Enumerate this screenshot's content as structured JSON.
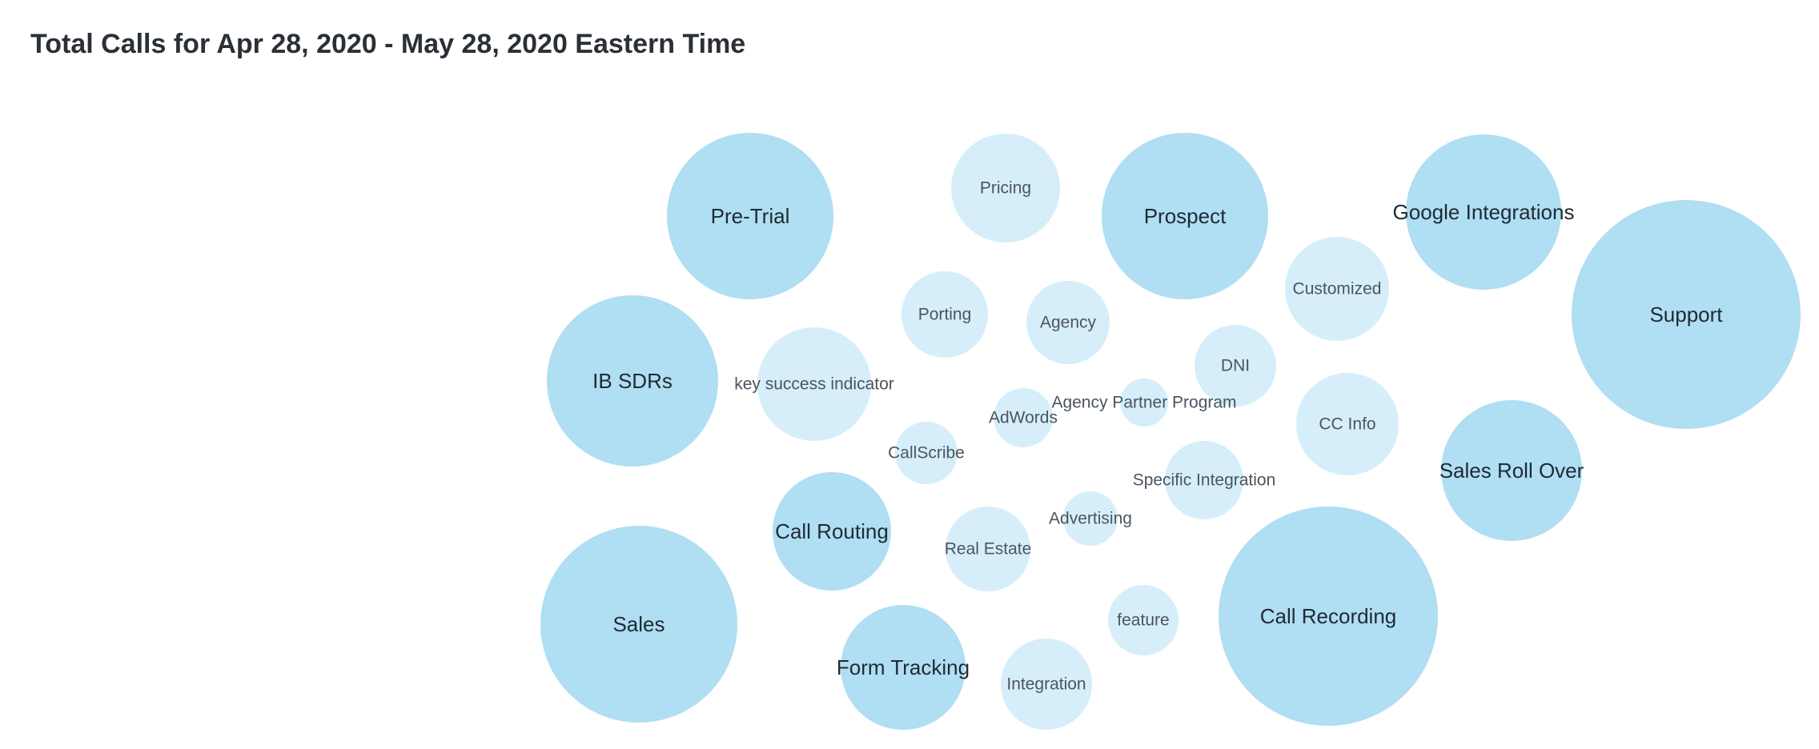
{
  "chart_data": {
    "type": "bubble",
    "title": "Total Calls for Apr 28, 2020 - May 28, 2020 Eastern Time",
    "colors": {
      "large": "#b0def3",
      "small": "#d6eef9",
      "label_large": "#1f2a33",
      "label_small": "#4a5560"
    },
    "bubbles": [
      {
        "label": "Pre-Trial",
        "tier": "large"
      },
      {
        "label": "Pricing",
        "tier": "small"
      },
      {
        "label": "Prospect",
        "tier": "large"
      },
      {
        "label": "Google Integrations",
        "tier": "large"
      },
      {
        "label": "Support",
        "tier": "large"
      },
      {
        "label": "Customized",
        "tier": "small"
      },
      {
        "label": "Porting",
        "tier": "small"
      },
      {
        "label": "Agency",
        "tier": "small"
      },
      {
        "label": "IB SDRs",
        "tier": "large"
      },
      {
        "label": "key success indicator",
        "tier": "small"
      },
      {
        "label": "DNI",
        "tier": "small"
      },
      {
        "label": "AdWords",
        "tier": "small"
      },
      {
        "label": "Agency Partner Program",
        "tier": "small"
      },
      {
        "label": "CC Info",
        "tier": "small"
      },
      {
        "label": "CallScribe",
        "tier": "small"
      },
      {
        "label": "Sales Roll Over",
        "tier": "large"
      },
      {
        "label": "Specific Integration",
        "tier": "small"
      },
      {
        "label": "Call Routing",
        "tier": "large"
      },
      {
        "label": "Advertising",
        "tier": "small"
      },
      {
        "label": "Real Estate",
        "tier": "small"
      },
      {
        "label": "Sales",
        "tier": "large"
      },
      {
        "label": "Call Recording",
        "tier": "large"
      },
      {
        "label": "feature",
        "tier": "small"
      },
      {
        "label": "Form Tracking",
        "tier": "large"
      },
      {
        "label": "Integration",
        "tier": "small"
      }
    ]
  }
}
